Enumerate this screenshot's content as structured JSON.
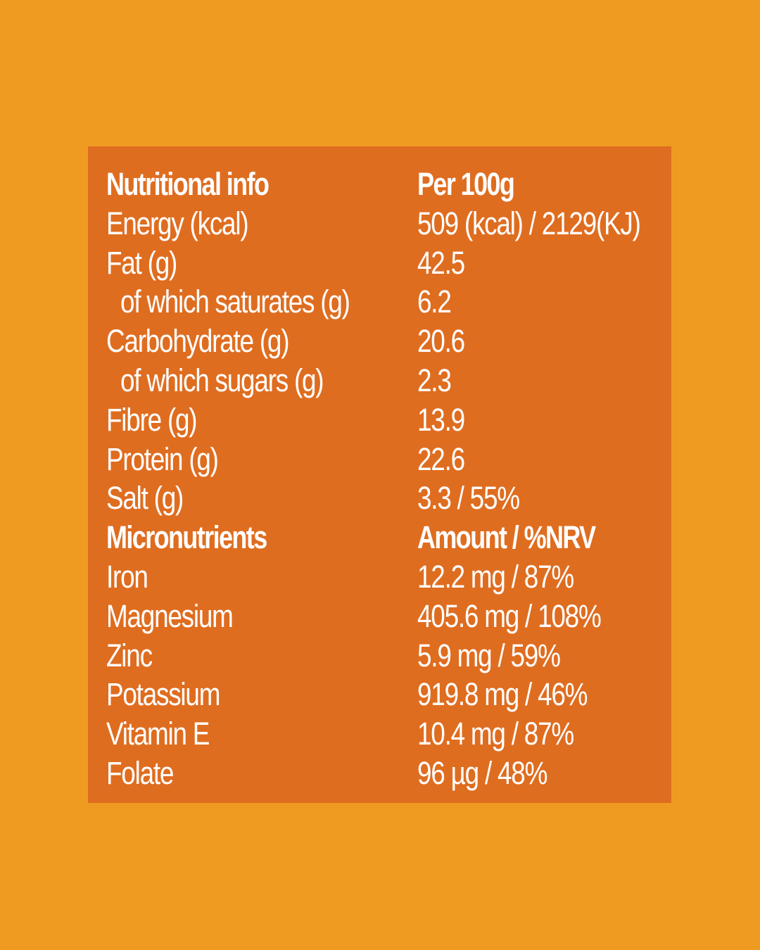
{
  "colors": {
    "background": "#EF9B22",
    "panel": "#DF6D20",
    "text": "#FFFFFF"
  },
  "rows": [
    {
      "label": "Nutritional info",
      "value": "Per 100g",
      "heading": true
    },
    {
      "label": "Energy (kcal)",
      "value": "509 (kcal) / 2129(KJ)"
    },
    {
      "label": "Fat (g)",
      "value": "42.5"
    },
    {
      "label": "of which saturates (g)",
      "value": "6.2",
      "indent": true
    },
    {
      "label": "Carbohydrate (g)",
      "value": "20.6"
    },
    {
      "label": "of which sugars (g)",
      "value": "2.3",
      "indent": true
    },
    {
      "label": "Fibre (g)",
      "value": "13.9"
    },
    {
      "label": "Protein (g)",
      "value": "22.6"
    },
    {
      "label": "Salt (g)",
      "value": "3.3 / 55%"
    },
    {
      "label": "Micronutrients",
      "value": "Amount / %NRV",
      "heading": true
    },
    {
      "label": "Iron",
      "value": "12.2 mg / 87%"
    },
    {
      "label": "Magnesium",
      "value": "405.6 mg / 108%"
    },
    {
      "label": "Zinc",
      "value": "5.9 mg / 59%"
    },
    {
      "label": "Potassium",
      "value": "919.8 mg / 46%"
    },
    {
      "label": "Vitamin E",
      "value": "10.4 mg / 87%"
    },
    {
      "label": "Folate",
      "value": "96 µg / 48%"
    }
  ]
}
